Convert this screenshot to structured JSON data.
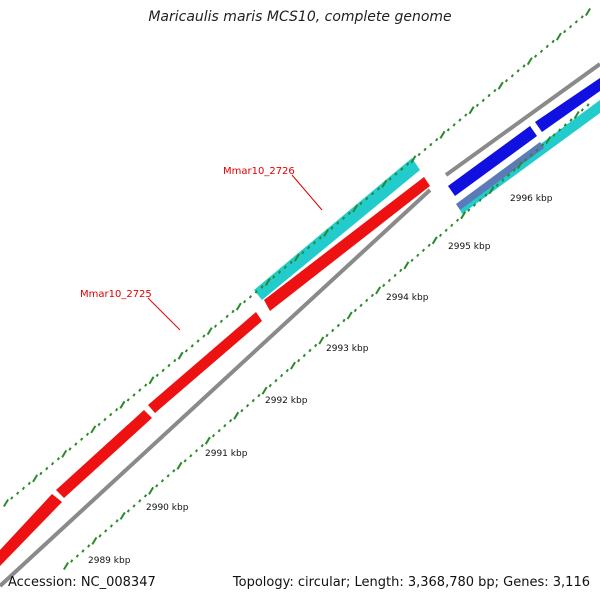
{
  "title": "Maricaulis maris MCS10, complete genome",
  "footer": {
    "accession": "Accession: NC_008347",
    "summary": "Topology: circular; Length: 3,368,780 bp; Genes: 3,116"
  },
  "colors": {
    "backbone": "#8a8a8a",
    "cds_forward": "#ee1111",
    "cds_reverse": "#22cccc",
    "gene_blue": "#1010e0",
    "ticks": "#2a8a2a",
    "label": "#e00000"
  },
  "scale_ticks": [
    {
      "label": "2989 kbp"
    },
    {
      "label": "2990 kbp"
    },
    {
      "label": "2991 kbp"
    },
    {
      "label": "2992 kbp"
    },
    {
      "label": "2993 kbp"
    },
    {
      "label": "2994 kbp"
    },
    {
      "label": "2995 kbp"
    },
    {
      "label": "2996 kbp"
    }
  ],
  "gene_labels": [
    {
      "text": "Mmar10_2725"
    },
    {
      "text": "Mmar10_2726"
    }
  ]
}
